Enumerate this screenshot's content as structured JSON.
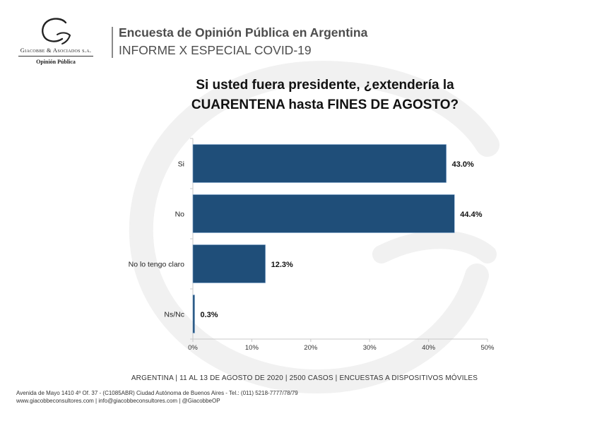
{
  "brand": {
    "company": "Giacobbe & Asociados s.a.",
    "unit": "Opinión Pública"
  },
  "header": {
    "title": "Encuesta de Opinión Pública en Argentina",
    "subtitle": "INFORME X ESPECIAL COVID-19"
  },
  "question": {
    "line1": "Si usted fuera presidente, ¿extendería la",
    "line2": "CUARENTENA hasta FINES DE AGOSTO?"
  },
  "chart_data": {
    "type": "bar",
    "orientation": "horizontal",
    "title": "Si usted fuera presidente, ¿extendería la CUARENTENA hasta FINES DE AGOSTO?",
    "categories": [
      "Si",
      "No",
      "No lo tengo claro",
      "Ns/Nc"
    ],
    "values": [
      43.0,
      44.4,
      12.3,
      0.3
    ],
    "data_labels": [
      "43.0%",
      "44.4%",
      "12.3%",
      "0.3%"
    ],
    "xlim": [
      0,
      50
    ],
    "x_ticks": [
      "0%",
      "10%",
      "20%",
      "30%",
      "40%",
      "50%"
    ],
    "grid": false,
    "legend": "none",
    "bar_color": "#1f4e79"
  },
  "footer": {
    "study": "ARGENTINA | 11 AL 13 DE AGOSTO DE 2020 | 2500 CASOS | ENCUESTAS A DISPOSITIVOS MÓVILES",
    "address": "Avenida de Mayo 1410 4º Of. 37 - (C1085ABR) Ciudad Autónoma de Buenos Aires - Tel.: (011) 5218-7777/78/79",
    "contact": "www.giacobbeconsultores.com | info@giacobbeconsultores.com | @GiacobbeOP"
  },
  "colors": {
    "bar": "#1f4e79",
    "header_text": "#4d4d4d",
    "header_bar": "#8a8a8a",
    "watermark": "#f1f1f1"
  }
}
